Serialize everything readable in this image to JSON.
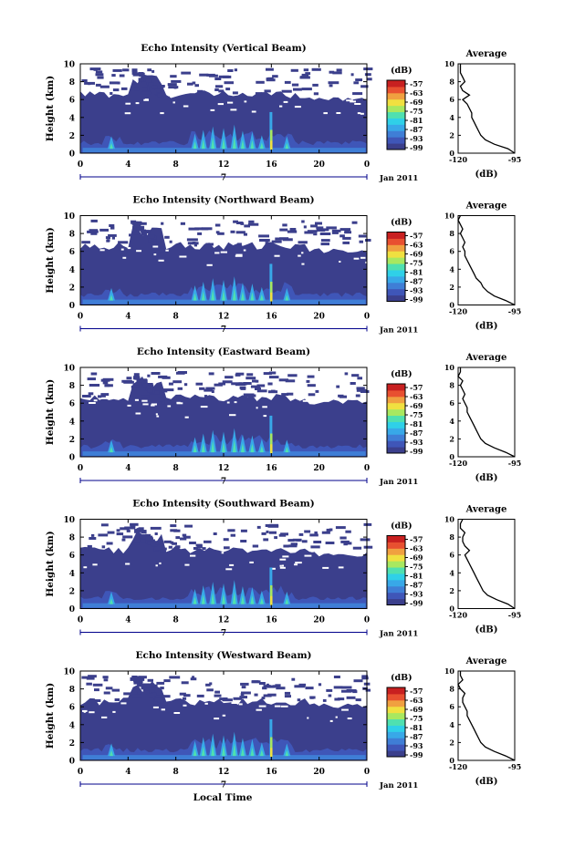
{
  "colors": {
    "background_echo": "#3b3f8c",
    "colorbar": [
      "#3b3f8c",
      "#3f56b8",
      "#3f7ed6",
      "#38a8e8",
      "#2fd0e8",
      "#4fe0b0",
      "#a8e860",
      "#f0e040",
      "#f0a040",
      "#e85030",
      "#c82020"
    ]
  },
  "chart_data": [
    {
      "type": "heatmap",
      "title": "Echo Intensity (Vertical Beam)",
      "ylabel": "Height (km)",
      "ylim": [
        0,
        10
      ],
      "yticks": [
        "0",
        "2",
        "4",
        "6",
        "8",
        "10"
      ],
      "xlim": [
        0,
        24
      ],
      "xticks": [
        "0",
        "4",
        "8",
        "12",
        "16",
        "20",
        "0"
      ],
      "date_marker": "7",
      "date_label": "Jan 2011",
      "colorbar": {
        "unit": "(dB)",
        "ticks": [
          "-57",
          "-63",
          "-69",
          "-75",
          "-81",
          "-87",
          "-93",
          "-99"
        ]
      },
      "average": {
        "title": "Average",
        "xlabel": "(dB)",
        "xticks": [
          "-120",
          "-95"
        ],
        "xlim": [
          -120,
          -95
        ],
        "ylim": [
          0,
          10
        ],
        "heights": [
          0,
          0.5,
          1,
          1.5,
          2,
          2.5,
          3,
          3.5,
          4,
          4.5,
          5,
          5.5,
          6,
          6.5,
          7,
          7.5,
          8,
          8.5,
          9,
          9.5,
          10
        ],
        "values": [
          -95,
          -98,
          -104,
          -108,
          -110,
          -111,
          -112,
          -113,
          -114,
          -114,
          -115,
          -116,
          -118,
          -115,
          -118,
          -119,
          -117,
          -118,
          -119,
          -119,
          -119
        ]
      }
    },
    {
      "type": "heatmap",
      "title": "Echo Intensity (Northward Beam)",
      "ylabel": "Height (km)",
      "ylim": [
        0,
        10
      ],
      "yticks": [
        "0",
        "2",
        "4",
        "6",
        "8",
        "10"
      ],
      "xlim": [
        0,
        24
      ],
      "xticks": [
        "0",
        "4",
        "8",
        "12",
        "16",
        "20",
        "0"
      ],
      "date_marker": "7",
      "date_label": "Jan 2011",
      "colorbar": {
        "unit": "(dB)",
        "ticks": [
          "-57",
          "-63",
          "-69",
          "-75",
          "-81",
          "-87",
          "-93",
          "-99"
        ]
      },
      "average": {
        "title": "Average",
        "xlabel": "(dB)",
        "xticks": [
          "-120",
          "-95"
        ],
        "xlim": [
          -120,
          -95
        ],
        "ylim": [
          0,
          10
        ],
        "heights": [
          0,
          0.5,
          1,
          1.5,
          2,
          2.5,
          3,
          3.5,
          4,
          4.5,
          5,
          5.5,
          6,
          6.5,
          7,
          7.5,
          8,
          8.5,
          9,
          9.5,
          10
        ],
        "values": [
          -95,
          -99,
          -104,
          -107,
          -109,
          -110,
          -112,
          -113,
          -114,
          -115,
          -116,
          -117,
          -117,
          -118,
          -117,
          -118,
          -119,
          -118,
          -119,
          -120,
          -119
        ]
      }
    },
    {
      "type": "heatmap",
      "title": "Echo Intensity (Eastward Beam)",
      "ylabel": "Height (km)",
      "ylim": [
        0,
        10
      ],
      "yticks": [
        "0",
        "2",
        "4",
        "6",
        "8",
        "10"
      ],
      "xlim": [
        0,
        24
      ],
      "xticks": [
        "0",
        "4",
        "8",
        "12",
        "16",
        "20",
        "0"
      ],
      "date_marker": "7",
      "date_label": "Jan 2011",
      "colorbar": {
        "unit": "(dB)",
        "ticks": [
          "-57",
          "-63",
          "-69",
          "-75",
          "-81",
          "-87",
          "-93",
          "-99"
        ]
      },
      "average": {
        "title": "Average",
        "xlabel": "(dB)",
        "xticks": [
          "-120",
          "-95"
        ],
        "xlim": [
          -120,
          -95
        ],
        "ylim": [
          0,
          10
        ],
        "heights": [
          0,
          0.5,
          1,
          1.5,
          2,
          2.5,
          3,
          3.5,
          4,
          4.5,
          5,
          5.5,
          6,
          6.5,
          7,
          7.5,
          8,
          8.5,
          9,
          9.5,
          10
        ],
        "values": [
          -95,
          -99,
          -104,
          -108,
          -110,
          -111,
          -112,
          -113,
          -114,
          -115,
          -116,
          -116,
          -117,
          -118,
          -117,
          -118,
          -119,
          -118,
          -120,
          -119,
          -119
        ]
      }
    },
    {
      "type": "heatmap",
      "title": "Echo Intensity (Southward Beam)",
      "ylabel": "Height (km)",
      "ylim": [
        0,
        10
      ],
      "yticks": [
        "0",
        "2",
        "4",
        "6",
        "8",
        "10"
      ],
      "xlim": [
        0,
        24
      ],
      "xticks": [
        "0",
        "4",
        "8",
        "12",
        "16",
        "20",
        "0"
      ],
      "date_marker": "7",
      "date_label": "Jan 2011",
      "colorbar": {
        "unit": "(dB)",
        "ticks": [
          "-57",
          "-63",
          "-69",
          "-75",
          "-81",
          "-87",
          "-93",
          "-99"
        ]
      },
      "average": {
        "title": "Average",
        "xlabel": "(dB)",
        "xticks": [
          "-120",
          "-95"
        ],
        "xlim": [
          -120,
          -95
        ],
        "ylim": [
          0,
          10
        ],
        "heights": [
          0,
          0.5,
          1,
          1.5,
          2,
          2.5,
          3,
          3.5,
          4,
          4.5,
          5,
          5.5,
          6,
          6.5,
          7,
          7.5,
          8,
          8.5,
          9,
          9.5,
          10
        ],
        "values": [
          -95,
          -98,
          -103,
          -107,
          -109,
          -110,
          -111,
          -112,
          -113,
          -114,
          -115,
          -116,
          -117,
          -115,
          -117,
          -118,
          -118,
          -117,
          -119,
          -119,
          -118
        ]
      }
    },
    {
      "type": "heatmap",
      "title": "Echo Intensity (Westward Beam)",
      "ylabel": "Height (km)",
      "ylim": [
        0,
        10
      ],
      "yticks": [
        "0",
        "2",
        "4",
        "6",
        "8",
        "10"
      ],
      "xlim": [
        0,
        24
      ],
      "xticks": [
        "0",
        "4",
        "8",
        "12",
        "16",
        "20",
        "0"
      ],
      "date_marker": "7",
      "date_label": "Jan 2011",
      "colorbar": {
        "unit": "(dB)",
        "ticks": [
          "-57",
          "-63",
          "-69",
          "-75",
          "-81",
          "-87",
          "-93",
          "-99"
        ]
      },
      "average": {
        "title": "Average",
        "xlabel": "(dB)",
        "xticks": [
          "-120",
          "-95"
        ],
        "xlim": [
          -120,
          -95
        ],
        "ylim": [
          0,
          10
        ],
        "heights": [
          0,
          0.5,
          1,
          1.5,
          2,
          2.5,
          3,
          3.5,
          4,
          4.5,
          5,
          5.5,
          6,
          6.5,
          7,
          7.5,
          8,
          8.5,
          9,
          9.5,
          10
        ],
        "values": [
          -95,
          -99,
          -104,
          -108,
          -110,
          -111,
          -112,
          -113,
          -114,
          -115,
          -116,
          -116,
          -117,
          -118,
          -118,
          -117,
          -119,
          -120,
          -118,
          -119,
          -119
        ]
      }
    }
  ],
  "xaxis_label": "Local Time"
}
